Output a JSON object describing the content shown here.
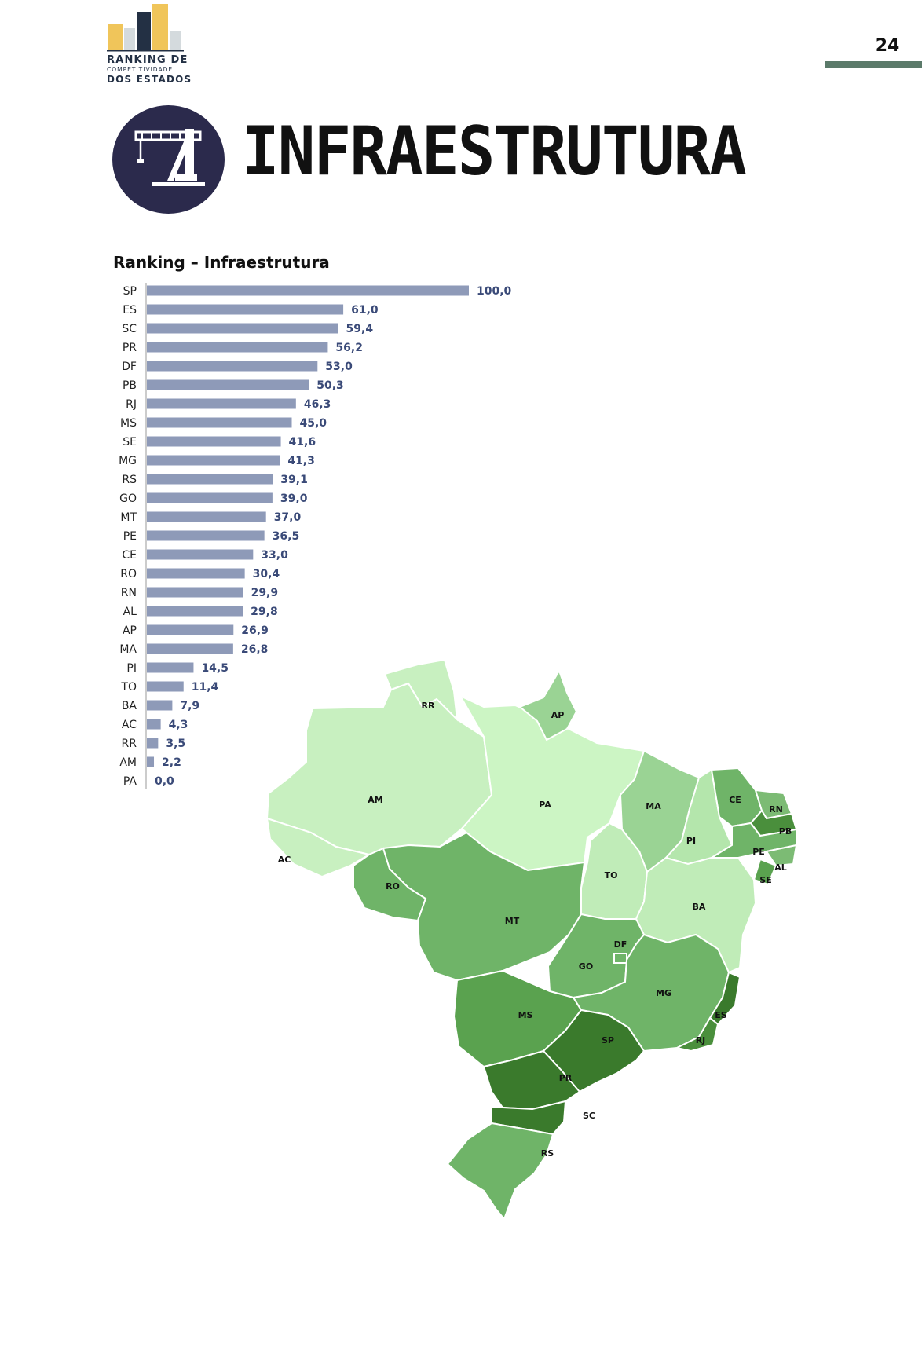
{
  "header": {
    "logo_line1": "RANKING DE",
    "logo_line2": "COMPETITIVIDADE",
    "logo_line3": "DOS ESTADOS",
    "page_number": "24"
  },
  "section": {
    "title": "INFRAESTRUTURA",
    "icon": "port-crane-icon",
    "badge_color": "#2b2a4c"
  },
  "colors": {
    "bar": "#8e9ab8",
    "value_label": "#3a4a78",
    "page_bar": "#5b7a6a",
    "map_light": "#c8f0c0",
    "map_dark": "#3a7a2c"
  },
  "chart_data": {
    "type": "bar",
    "orientation": "horizontal",
    "title": "Ranking – Infraestrutura",
    "categories": [
      "SP",
      "ES",
      "SC",
      "PR",
      "DF",
      "PB",
      "RJ",
      "MS",
      "SE",
      "MG",
      "RS",
      "GO",
      "MT",
      "PE",
      "CE",
      "RO",
      "RN",
      "AL",
      "AP",
      "MA",
      "PI",
      "TO",
      "BA",
      "AC",
      "RR",
      "AM",
      "PA"
    ],
    "values": [
      100.0,
      61.0,
      59.4,
      56.2,
      53.0,
      50.3,
      46.3,
      45.0,
      41.6,
      41.3,
      39.1,
      39.0,
      37.0,
      36.5,
      33.0,
      30.4,
      29.9,
      29.8,
      26.9,
      26.8,
      14.5,
      11.4,
      7.9,
      4.3,
      3.5,
      2.2,
      0.0
    ],
    "value_labels": [
      "100,0",
      "61,0",
      "59,4",
      "56,2",
      "53,0",
      "50,3",
      "46,3",
      "45,0",
      "41,6",
      "41,3",
      "39,1",
      "39,0",
      "37,0",
      "36,5",
      "33,0",
      "30,4",
      "29,9",
      "29,8",
      "26,9",
      "26,8",
      "14,5",
      "11,4",
      "7,9",
      "4,3",
      "3,5",
      "2,2",
      "0,0"
    ],
    "xlim": [
      0,
      100
    ],
    "grid": false,
    "legend": "none"
  },
  "map": {
    "type": "choropleth",
    "region": "Brazil",
    "state_labels": [
      "RR",
      "AP",
      "AM",
      "PA",
      "MA",
      "CE",
      "RN",
      "PB",
      "PI",
      "PE",
      "AL",
      "SE",
      "AC",
      "RO",
      "TO",
      "BA",
      "MT",
      "DF",
      "GO",
      "MG",
      "ES",
      "MS",
      "SP",
      "RJ",
      "PR",
      "SC",
      "RS"
    ]
  }
}
